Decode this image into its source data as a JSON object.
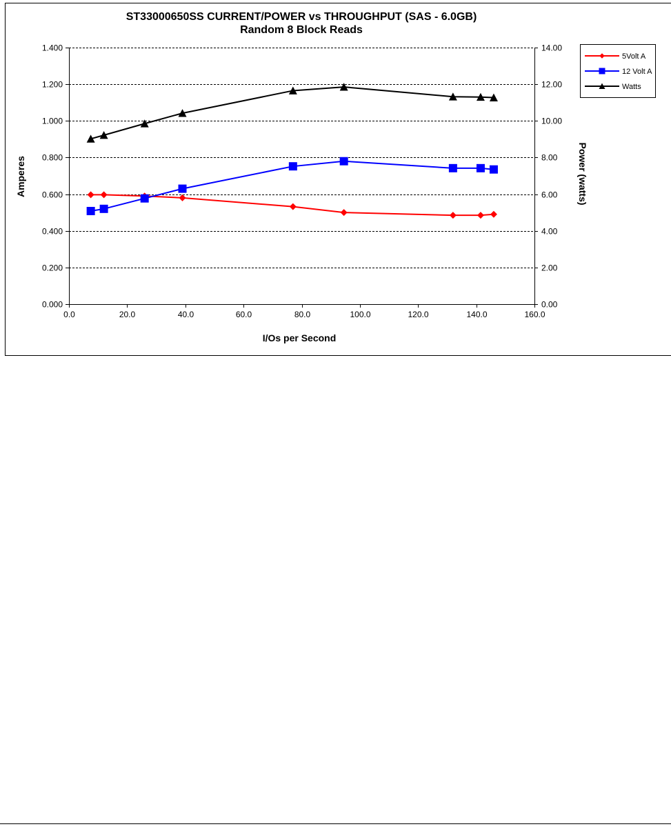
{
  "colors": {
    "five_volt": "#ff0000",
    "twelve_volt": "#0000ff",
    "watts": "#000000",
    "frame_border": "#000000",
    "grid": "#000000"
  },
  "chart_data": {
    "type": "line",
    "title": "ST33000650SS CURRENT/POWER vs THROUGHPUT (SAS - 6.0GB)",
    "subtitle": "Random 8 Block Reads",
    "xlabel": "I/Os per Second",
    "ylabel": "Amperes",
    "y2label": "Power (watts)",
    "xlim": [
      0,
      160
    ],
    "ylim": [
      0,
      1.4
    ],
    "y2lim": [
      0,
      14
    ],
    "xticks": [
      "0.0",
      "20.0",
      "40.0",
      "60.0",
      "80.0",
      "100.0",
      "120.0",
      "140.0",
      "160.0"
    ],
    "yticks": [
      "0.000",
      "0.200",
      "0.400",
      "0.600",
      "0.800",
      "1.000",
      "1.200",
      "1.400"
    ],
    "y2ticks": [
      "0.00",
      "2.00",
      "4.00",
      "6.00",
      "8.00",
      "10.00",
      "12.00",
      "14.00"
    ],
    "grid": "horizontal dashed",
    "legend_position": "top-right",
    "series": [
      {
        "name": "5Volt A",
        "axis": "left",
        "marker": "diamond",
        "color": "#ff0000",
        "x": [
          7.5,
          12.0,
          26.0,
          39.0,
          77.0,
          94.5,
          132.0,
          141.5,
          146.0
        ],
        "y": [
          0.597,
          0.597,
          0.59,
          0.58,
          0.532,
          0.5,
          0.485,
          0.485,
          0.49
        ]
      },
      {
        "name": "12 Volt A",
        "axis": "left",
        "marker": "square",
        "color": "#0000ff",
        "x": [
          7.5,
          12.0,
          26.0,
          39.0,
          77.0,
          94.5,
          132.0,
          141.5,
          146.0
        ],
        "y": [
          0.508,
          0.52,
          0.577,
          0.63,
          0.752,
          0.78,
          0.742,
          0.742,
          0.735
        ]
      },
      {
        "name": "Watts",
        "axis": "right",
        "marker": "triangle",
        "color": "#000000",
        "x": [
          7.5,
          12.0,
          26.0,
          39.0,
          77.0,
          94.5,
          132.0,
          141.5,
          146.0
        ],
        "y": [
          9.02,
          9.22,
          9.85,
          10.42,
          11.65,
          11.85,
          11.32,
          11.3,
          11.27
        ]
      }
    ]
  }
}
